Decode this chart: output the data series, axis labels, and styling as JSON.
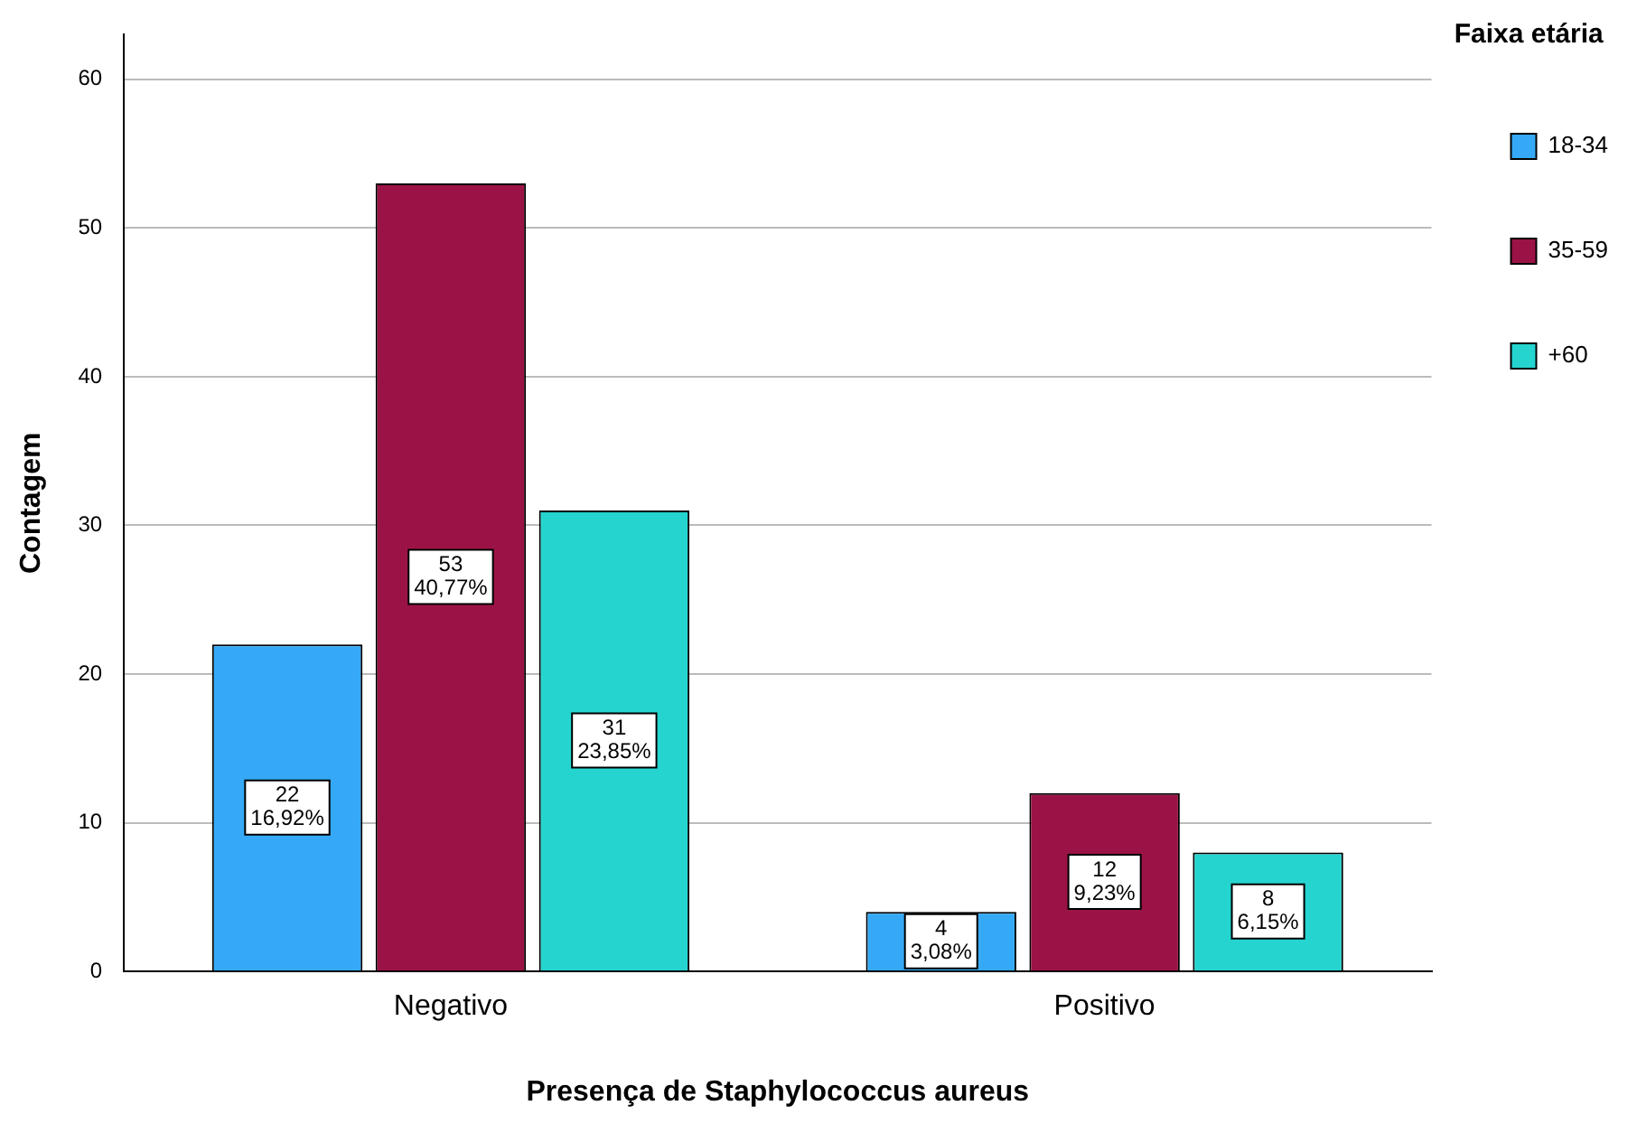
{
  "chart_data": {
    "type": "bar",
    "xlabel": "Presença de Staphylococcus aureus",
    "ylabel": "Contagem",
    "legend_title": "Faixa etária",
    "categories": [
      "Negativo",
      "Positivo"
    ],
    "series": [
      {
        "name": "18-34",
        "color": "#35a9f5",
        "values": [
          22,
          4
        ],
        "value_labels": [
          "22\n16,92%",
          "4\n3,08%"
        ]
      },
      {
        "name": "35-59",
        "color": "#9b1346",
        "values": [
          53,
          12
        ],
        "value_labels": [
          "53\n40,77%",
          "12\n9,23%"
        ]
      },
      {
        "name": "+60",
        "color": "#25d4cf",
        "values": [
          31,
          8
        ],
        "value_labels": [
          "31\n23,85%",
          "8\n6,15%"
        ]
      }
    ],
    "ylim": [
      0,
      63
    ],
    "yticks": [
      0,
      10,
      20,
      30,
      40,
      50,
      60
    ],
    "grid": "y",
    "legend": "top right"
  }
}
